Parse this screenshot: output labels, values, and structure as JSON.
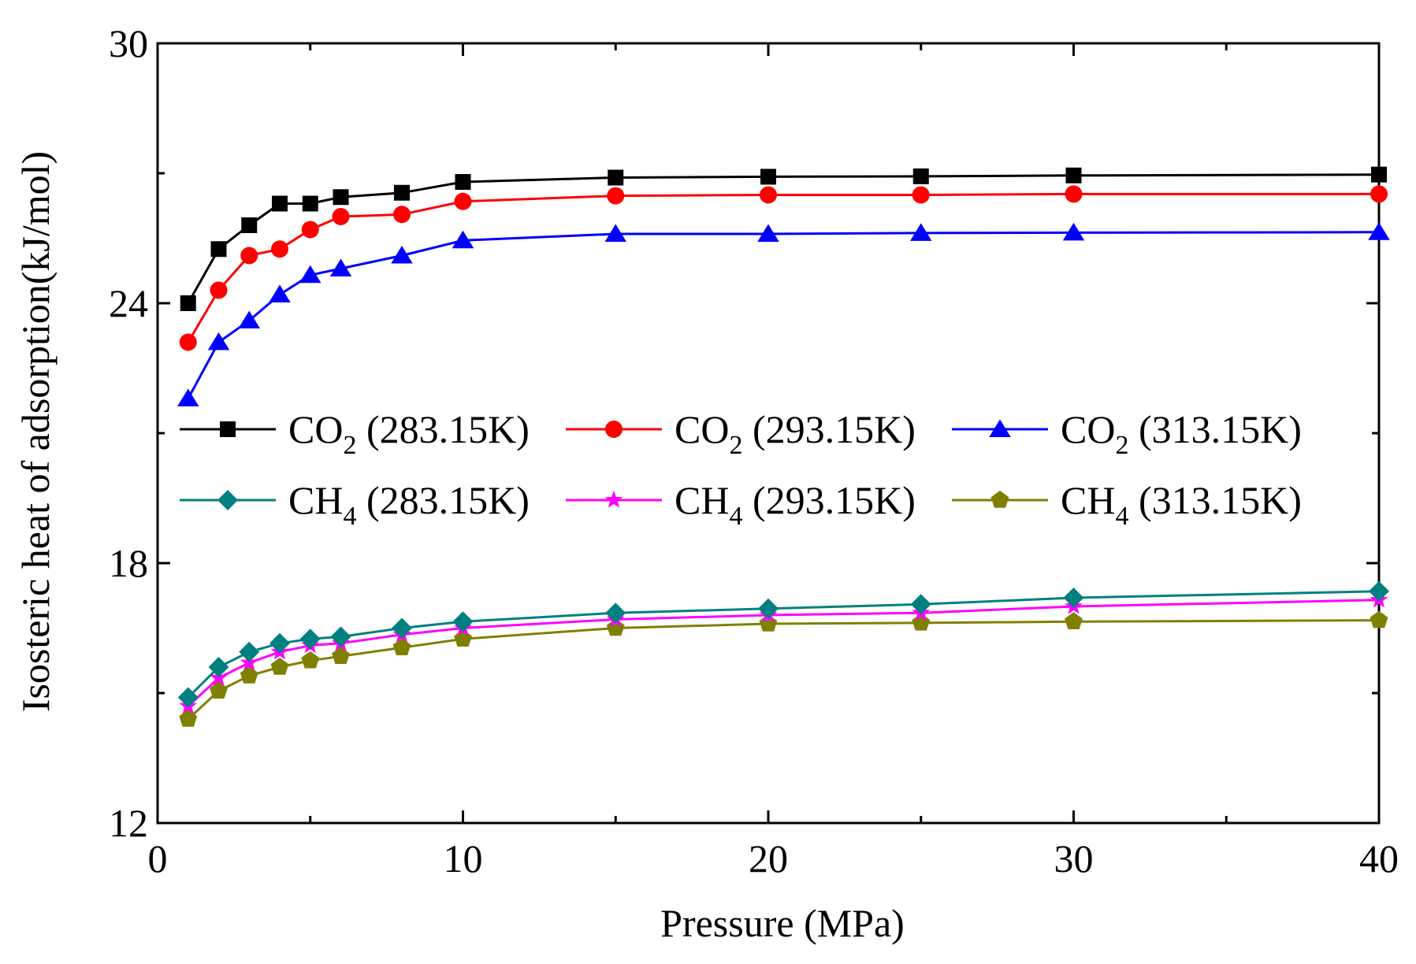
{
  "chart_data": {
    "type": "line",
    "xlabel": "Pressure (MPa)",
    "ylabel": "Isosteric heat of adsorption(kJ/mol)",
    "xlim": [
      0,
      40
    ],
    "ylim": [
      12,
      30
    ],
    "x_ticks": [
      0,
      10,
      20,
      30,
      40
    ],
    "y_ticks": [
      12,
      18,
      24,
      30
    ],
    "grid": false,
    "legend_placement": "center, two rows of three",
    "x": [
      1,
      2,
      3,
      4,
      5,
      6,
      8,
      10,
      15,
      20,
      25,
      30,
      40
    ],
    "series": [
      {
        "name_main": "CO",
        "name_sub": "2",
        "name_rest": " (283.15K)",
        "color": "#000000",
        "marker": "square",
        "values": [
          24.0,
          25.25,
          25.8,
          26.3,
          26.3,
          26.45,
          26.55,
          26.8,
          26.9,
          26.92,
          26.93,
          26.95,
          26.97
        ]
      },
      {
        "name_main": "CO",
        "name_sub": "2",
        "name_rest": " (293.15K)",
        "color": "#ff0000",
        "marker": "circle",
        "values": [
          23.1,
          24.3,
          25.1,
          25.25,
          25.7,
          26.0,
          26.05,
          26.35,
          26.48,
          26.5,
          26.5,
          26.52,
          26.52
        ]
      },
      {
        "name_main": "CO",
        "name_sub": "2",
        "name_rest": " (313.15K)",
        "color": "#0000ff",
        "marker": "triangle",
        "values": [
          21.8,
          23.1,
          23.6,
          24.2,
          24.65,
          24.8,
          25.1,
          25.45,
          25.6,
          25.6,
          25.62,
          25.63,
          25.64
        ]
      },
      {
        "name_main": "CH",
        "name_sub": "4",
        "name_rest": " (283.15K)",
        "color": "#008080",
        "marker": "diamond",
        "values": [
          14.9,
          15.6,
          15.95,
          16.15,
          16.25,
          16.3,
          16.5,
          16.65,
          16.85,
          16.95,
          17.05,
          17.2,
          17.35
        ]
      },
      {
        "name_main": "CH",
        "name_sub": "4",
        "name_rest": " (293.15K)",
        "color": "#ff00ff",
        "marker": "star",
        "values": [
          14.7,
          15.35,
          15.7,
          15.95,
          16.1,
          16.15,
          16.35,
          16.5,
          16.7,
          16.8,
          16.85,
          17.0,
          17.15
        ]
      },
      {
        "name_main": "CH",
        "name_sub": "4",
        "name_rest": " (313.15K)",
        "color": "#808000",
        "marker": "pentagon",
        "values": [
          14.4,
          15.05,
          15.4,
          15.6,
          15.75,
          15.85,
          16.05,
          16.25,
          16.5,
          16.6,
          16.62,
          16.65,
          16.68
        ]
      }
    ]
  }
}
